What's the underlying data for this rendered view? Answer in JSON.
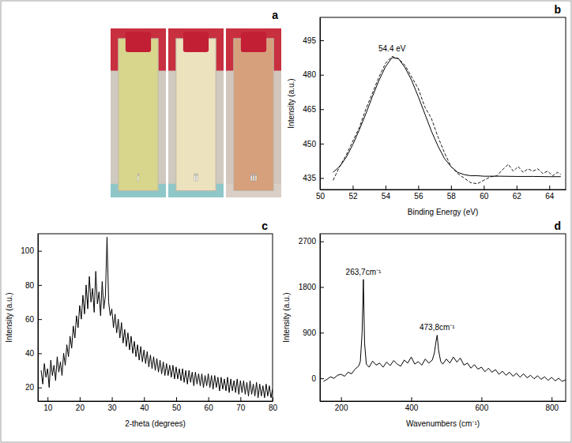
{
  "chart_data": [
    {
      "type": "image",
      "panel_label": "a",
      "labels": [
        "i",
        "ii",
        "iii"
      ],
      "colors": [
        "#d8d68c",
        "#ece2bd",
        "#d6a07c"
      ]
    },
    {
      "type": "line",
      "panel_label": "b",
      "x_label": "Binding Energy (eV)",
      "y_label": "Intensity (a.u.)",
      "xlim": [
        50,
        65
      ],
      "xticks": [
        50,
        52,
        54,
        56,
        58,
        60,
        62,
        64
      ],
      "ylim": [
        430,
        505
      ],
      "yticks": [
        435,
        450,
        465,
        480,
        495
      ],
      "annotations": [
        {
          "text": "54.4 eV",
          "x": 54.4
        }
      ],
      "series": [
        {
          "line_style": "solid",
          "color": "#000000",
          "x": [
            50.8,
            51.2,
            51.6,
            52,
            52.4,
            52.8,
            53.2,
            53.6,
            54,
            54.4,
            54.8,
            55.2,
            55.6,
            56,
            56.4,
            56.8,
            57.2,
            57.6,
            58,
            58.4,
            58.8,
            59.2,
            59.6,
            60,
            61,
            62,
            63,
            64,
            64.7
          ],
          "values": [
            437.5,
            440,
            444,
            449.5,
            456,
            463,
            470.5,
            477.5,
            483.5,
            487.5,
            487,
            483,
            477.5,
            470.5,
            463,
            455.5,
            449,
            443.5,
            440,
            437.5,
            436.5,
            436,
            436,
            435.8,
            435.8,
            435.7,
            435.7,
            435.6,
            435.6
          ]
        },
        {
          "line_style": "dashed",
          "color": "#000000",
          "x": [
            50.8,
            51.2,
            51.6,
            52,
            52.4,
            52.8,
            53.2,
            53.6,
            54,
            54.4,
            54.8,
            55.2,
            55.6,
            56,
            56.4,
            56.8,
            57.2,
            57.6,
            58,
            58.4,
            58.8,
            59.2,
            59.6,
            60,
            60.4,
            60.8,
            61.2,
            61.5,
            61.8,
            62.1,
            62.4,
            62.7,
            63,
            63.3,
            63.6,
            63.9,
            64.2,
            64.5,
            64.7
          ],
          "values": [
            434,
            440,
            445,
            451,
            457,
            465,
            472,
            479,
            485,
            488,
            487,
            484,
            479,
            474,
            466,
            461,
            453,
            446,
            440,
            437,
            435,
            433,
            432.5,
            434,
            435.5,
            436,
            439,
            441,
            438,
            440,
            437.5,
            439,
            438,
            439,
            437,
            438,
            436,
            437.5,
            436.5
          ]
        }
      ]
    },
    {
      "type": "line",
      "panel_label": "c",
      "x_label": "2-theta (degrees)",
      "y_label": "Intensity (a.u.)",
      "xlim": [
        7,
        80
      ],
      "xticks": [
        10,
        20,
        30,
        40,
        50,
        60,
        70,
        80
      ],
      "ylim": [
        12,
        110
      ],
      "yticks": [
        20,
        40,
        60,
        80,
        100
      ],
      "series": [
        {
          "line_style": "solid",
          "color": "#000000",
          "x": [
            8,
            8.5,
            9,
            9.5,
            10,
            10.5,
            11,
            11.5,
            12,
            12.5,
            13,
            13.5,
            14,
            14.5,
            15,
            15.5,
            16,
            16.5,
            17,
            17.5,
            18,
            18.5,
            19,
            19.5,
            20,
            20.5,
            21,
            21.5,
            22,
            22.5,
            23,
            23.5,
            24,
            24.5,
            25,
            25.5,
            26,
            26.5,
            27,
            27.5,
            28,
            28.5,
            29,
            29.5,
            30,
            30.5,
            31,
            31.5,
            32,
            32.5,
            33,
            33.5,
            34,
            34.5,
            35,
            35.5,
            36,
            36.5,
            37,
            37.5,
            38,
            38.5,
            39,
            39.5,
            40,
            40.5,
            41,
            41.5,
            42,
            42.5,
            43,
            43.5,
            44,
            44.5,
            45,
            45.5,
            46,
            46.5,
            47,
            47.5,
            48,
            48.5,
            49,
            49.5,
            50,
            50.5,
            51,
            51.5,
            52,
            52.5,
            53,
            53.5,
            54,
            54.5,
            55,
            55.5,
            56,
            56.5,
            57,
            57.5,
            58,
            58.5,
            59,
            59.5,
            60,
            60.5,
            61,
            61.5,
            62,
            62.5,
            63,
            63.5,
            64,
            64.5,
            65,
            65.5,
            66,
            66.5,
            67,
            67.5,
            68,
            68.5,
            69,
            69.5,
            70,
            70.5,
            71,
            71.5,
            72,
            72.5,
            73,
            73.5,
            74,
            74.5,
            75,
            75.5,
            76,
            76.5,
            77,
            77.5,
            78,
            78.5,
            79,
            79.5,
            80
          ],
          "values": [
            30,
            22,
            34,
            26,
            31,
            20,
            36,
            27,
            33,
            24,
            38,
            29,
            35,
            27,
            40,
            33,
            45,
            38,
            50,
            43,
            56,
            49,
            62,
            55,
            68,
            60,
            74,
            63,
            80,
            66,
            85,
            70,
            78,
            64,
            88,
            69,
            76,
            62,
            82,
            66,
            74,
            108,
            70,
            62,
            66,
            55,
            63,
            52,
            60,
            49,
            58,
            46,
            54,
            44,
            52,
            42,
            50,
            40,
            47,
            38,
            45,
            36,
            44,
            35,
            42,
            34,
            41,
            32,
            39,
            31,
            38,
            30,
            37,
            29,
            36,
            28,
            35,
            27,
            34,
            27,
            33,
            26,
            33,
            25,
            32,
            25,
            31,
            24,
            31,
            23,
            30,
            22,
            30,
            23,
            29,
            21,
            29,
            22,
            28,
            21,
            28,
            20,
            27,
            21,
            28,
            20,
            27,
            19,
            27,
            20,
            26,
            18,
            26,
            19,
            25,
            18,
            26,
            17,
            25,
            18,
            24,
            17,
            25,
            16,
            24,
            17,
            24,
            16,
            23,
            15,
            24,
            16,
            22,
            15,
            23,
            14,
            22,
            15,
            21,
            14,
            22,
            15,
            21,
            14,
            19
          ]
        }
      ]
    },
    {
      "type": "line",
      "panel_label": "d",
      "x_label": "Wavenumbers (cm⁻¹)",
      "y_label": "Intensity (a.u.)",
      "xlim": [
        140,
        840
      ],
      "xticks": [
        200,
        400,
        600,
        800
      ],
      "ylim": [
        -450,
        2850
      ],
      "yticks": [
        0,
        900,
        1800,
        2700
      ],
      "annotations": [
        {
          "text": "263,7cm⁻¹",
          "x": 263.7
        },
        {
          "text": "473,8cm⁻¹",
          "x": 473.8
        }
      ],
      "series": [
        {
          "line_style": "solid",
          "color": "#000000",
          "x": [
            150,
            160,
            170,
            180,
            190,
            200,
            210,
            220,
            230,
            240,
            250,
            255,
            260,
            263.7,
            267,
            272,
            280,
            290,
            300,
            310,
            320,
            330,
            340,
            350,
            360,
            370,
            380,
            390,
            400,
            410,
            420,
            430,
            440,
            450,
            460,
            466,
            470,
            473.8,
            478,
            484,
            490,
            500,
            510,
            520,
            530,
            540,
            550,
            560,
            570,
            580,
            590,
            600,
            610,
            620,
            630,
            640,
            650,
            660,
            670,
            680,
            690,
            700,
            710,
            720,
            730,
            740,
            750,
            760,
            770,
            780,
            790,
            800,
            810,
            820,
            830,
            840
          ],
          "values": [
            -60,
            -20,
            30,
            0,
            60,
            80,
            40,
            120,
            90,
            180,
            240,
            330,
            900,
            1950,
            700,
            280,
            220,
            340,
            260,
            300,
            220,
            320,
            250,
            350,
            280,
            240,
            360,
            300,
            420,
            280,
            330,
            260,
            380,
            300,
            360,
            500,
            700,
            850,
            550,
            330,
            280,
            380,
            300,
            420,
            320,
            400,
            260,
            300,
            200,
            270,
            180,
            220,
            130,
            200,
            120,
            170,
            80,
            140,
            60,
            120,
            40,
            100,
            20,
            90,
            10,
            60,
            -10,
            50,
            -20,
            30,
            -40,
            20,
            -50,
            0,
            -60,
            -30
          ]
        }
      ]
    }
  ]
}
